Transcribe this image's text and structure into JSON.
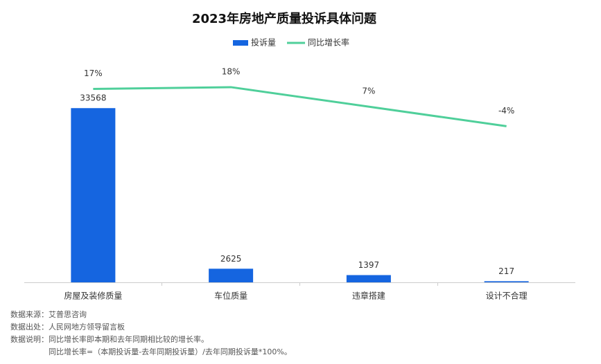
{
  "chart_data": {
    "type": "bar",
    "title": "2023年房地产质量投诉具体问题",
    "categories": [
      "房屋及装修质量",
      "车位质量",
      "违章搭建",
      "设计不合理"
    ],
    "series": [
      {
        "name": "投诉量",
        "type": "bar",
        "color": "#1565e0",
        "values": [
          33568,
          2625,
          1397,
          217
        ]
      },
      {
        "name": "同比增长率",
        "type": "line",
        "axis": "y2",
        "color": "#4fcf9a",
        "values": [
          17,
          18,
          7,
          -4
        ],
        "value_labels": [
          "17%",
          "18%",
          "7%",
          "-4%"
        ]
      }
    ],
    "ylim": [
      0,
      40000
    ],
    "y2lim": [
      -92,
      25
    ],
    "legend": "top",
    "notes": [
      [
        "数据来源：",
        "艾普思咨询"
      ],
      [
        "数据出处：",
        "人民网地方领导留言板"
      ],
      [
        "数据说明：",
        "同比增长率即本期和去年同期相比较的增长率。"
      ]
    ],
    "formula": "同比增长率=（本期投诉量-去年同期投诉量）/去年同期投诉量*100%。"
  }
}
